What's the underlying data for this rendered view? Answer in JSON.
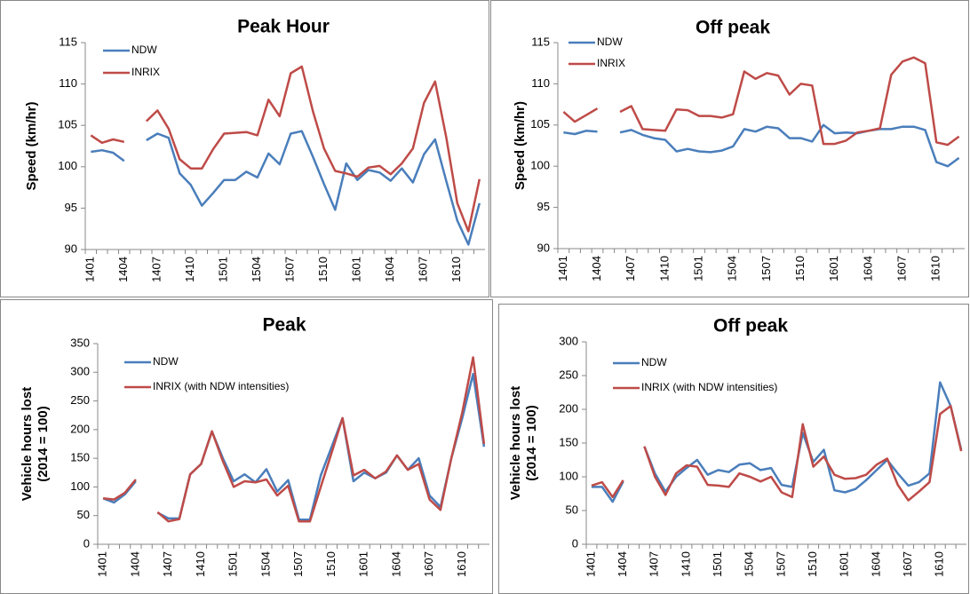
{
  "chart_data": [
    {
      "type": "line",
      "title": "Peak Hour",
      "ylabel": [
        "Speed (km/hr)"
      ],
      "categories": [
        "1401",
        null,
        null,
        "1404",
        null,
        null,
        "1407",
        null,
        null,
        "1410",
        null,
        null,
        "1501",
        null,
        null,
        "1504",
        null,
        null,
        "1507",
        null,
        null,
        "1510",
        null,
        null,
        "1601",
        null,
        null,
        "1604",
        null,
        null,
        "1607",
        null,
        null,
        "1610",
        null,
        null
      ],
      "ylim": [
        90,
        115
      ],
      "yticks": [
        90,
        95,
        100,
        105,
        110,
        115
      ],
      "series": [
        {
          "name": "NDW",
          "color": "#4a7ebb",
          "values": [
            101.8,
            102.0,
            101.7,
            100.7,
            null,
            103.2,
            104.0,
            103.5,
            99.2,
            97.8,
            95.3,
            96.8,
            98.4,
            98.4,
            99.4,
            98.7,
            101.6,
            100.3,
            104.0,
            104.3,
            101.2,
            97.9,
            94.8,
            100.4,
            98.4,
            99.6,
            99.3,
            98.3,
            99.8,
            98.1,
            101.5,
            103.3,
            98.3,
            93.5,
            90.6,
            95.6
          ]
        },
        {
          "name": "INRIX",
          "color": "#be4b48",
          "values": [
            103.8,
            102.9,
            103.3,
            103.0,
            null,
            105.5,
            106.8,
            104.6,
            100.9,
            99.8,
            99.8,
            102.1,
            104.0,
            104.1,
            104.2,
            103.8,
            108.1,
            106.1,
            111.3,
            112.1,
            106.7,
            102.2,
            99.5,
            99.2,
            98.8,
            99.9,
            100.1,
            99.1,
            100.4,
            102.2,
            107.7,
            110.3,
            103.6,
            95.6,
            92.2,
            98.5
          ]
        }
      ]
    },
    {
      "type": "line",
      "title": "Off peak",
      "ylabel": [
        "Speed (km/hr)"
      ],
      "categories": [
        "1401",
        null,
        null,
        "1404",
        null,
        null,
        "1407",
        null,
        null,
        "1410",
        null,
        null,
        "1501",
        null,
        null,
        "1504",
        null,
        null,
        "1507",
        null,
        null,
        "1510",
        null,
        null,
        "1601",
        null,
        null,
        "1604",
        null,
        null,
        "1607",
        null,
        null,
        "1610",
        null,
        null
      ],
      "ylim": [
        90,
        115
      ],
      "yticks": [
        90,
        95,
        100,
        105,
        110,
        115
      ],
      "series": [
        {
          "name": "NDW",
          "color": "#4a7ebb",
          "values": [
            104.1,
            103.9,
            104.3,
            104.2,
            null,
            104.1,
            104.4,
            103.8,
            103.4,
            103.2,
            101.8,
            102.1,
            101.8,
            101.7,
            101.9,
            102.4,
            104.5,
            104.2,
            104.8,
            104.6,
            103.4,
            103.4,
            103.0,
            105.0,
            104.0,
            104.1,
            104.0,
            104.3,
            104.5,
            104.5,
            104.8,
            104.8,
            104.4,
            100.5,
            100.0,
            101.0
          ]
        },
        {
          "name": "INRIX",
          "color": "#be4b48",
          "values": [
            106.6,
            105.4,
            106.2,
            107.0,
            null,
            106.6,
            107.3,
            104.5,
            104.4,
            104.3,
            106.9,
            106.8,
            106.1,
            106.1,
            105.9,
            106.3,
            111.5,
            110.6,
            111.3,
            111.0,
            108.7,
            110.0,
            109.8,
            102.7,
            102.7,
            103.1,
            104.1,
            104.3,
            104.6,
            111.1,
            112.7,
            113.2,
            112.5,
            102.9,
            102.6,
            103.6
          ]
        }
      ]
    },
    {
      "type": "line",
      "title": "Peak",
      "ylabel": [
        "Vehicle hours lost",
        "(2014 = 100)"
      ],
      "categories": [
        "1401",
        null,
        null,
        "1404",
        null,
        null,
        "1407",
        null,
        null,
        "1410",
        null,
        null,
        "1501",
        null,
        null,
        "1504",
        null,
        null,
        "1507",
        null,
        null,
        "1510",
        null,
        null,
        "1601",
        null,
        null,
        "1604",
        null,
        null,
        "1607",
        null,
        null,
        "1610",
        null,
        null
      ],
      "ylim": [
        0,
        350
      ],
      "yticks": [
        0,
        50,
        100,
        150,
        200,
        250,
        300,
        350
      ],
      "series": [
        {
          "name": "NDW",
          "color": "#4a7ebb",
          "values": [
            80,
            73,
            87,
            110,
            null,
            55,
            45,
            45,
            122,
            140,
            197,
            150,
            110,
            122,
            108,
            131,
            92,
            112,
            43,
            43,
            120,
            170,
            220,
            110,
            125,
            115,
            125,
            155,
            130,
            150,
            85,
            65,
            150,
            220,
            297,
            170
          ]
        },
        {
          "name": "INRIX (with NDW intensities)",
          "color": "#be4b48",
          "values": [
            80,
            78,
            90,
            113,
            null,
            56,
            40,
            44,
            122,
            140,
            197,
            145,
            100,
            110,
            108,
            113,
            85,
            102,
            40,
            40,
            100,
            160,
            220,
            120,
            130,
            115,
            127,
            155,
            130,
            140,
            78,
            60,
            150,
            230,
            326,
            175
          ]
        }
      ]
    },
    {
      "type": "line",
      "title": "Off peak",
      "ylabel": [
        "Vehicle hours lost",
        "(2014 = 100)"
      ],
      "categories": [
        "1401",
        null,
        null,
        "1404",
        null,
        null,
        "1407",
        null,
        null,
        "1410",
        null,
        null,
        "1501",
        null,
        null,
        "1504",
        null,
        null,
        "1507",
        null,
        null,
        "1510",
        null,
        null,
        "1601",
        null,
        null,
        "1604",
        null,
        null,
        "1607",
        null,
        null,
        "1610",
        null,
        null
      ],
      "ylim": [
        0,
        300
      ],
      "yticks": [
        0,
        50,
        100,
        150,
        200,
        250,
        300
      ],
      "series": [
        {
          "name": "NDW",
          "color": "#4a7ebb",
          "values": [
            85,
            85,
            63,
            93,
            null,
            145,
            105,
            78,
            100,
            113,
            125,
            103,
            110,
            107,
            118,
            120,
            110,
            113,
            88,
            85,
            165,
            122,
            140,
            80,
            77,
            82,
            95,
            110,
            125,
            105,
            87,
            92,
            105,
            240,
            205,
            140
          ]
        },
        {
          "name": "INRIX (with NDW intensities)",
          "color": "#be4b48",
          "values": [
            87,
            92,
            70,
            95,
            null,
            145,
            100,
            73,
            105,
            117,
            115,
            88,
            87,
            85,
            105,
            100,
            93,
            100,
            77,
            70,
            178,
            115,
            130,
            103,
            97,
            98,
            103,
            118,
            127,
            88,
            65,
            78,
            92,
            193,
            205,
            138
          ]
        }
      ]
    }
  ]
}
